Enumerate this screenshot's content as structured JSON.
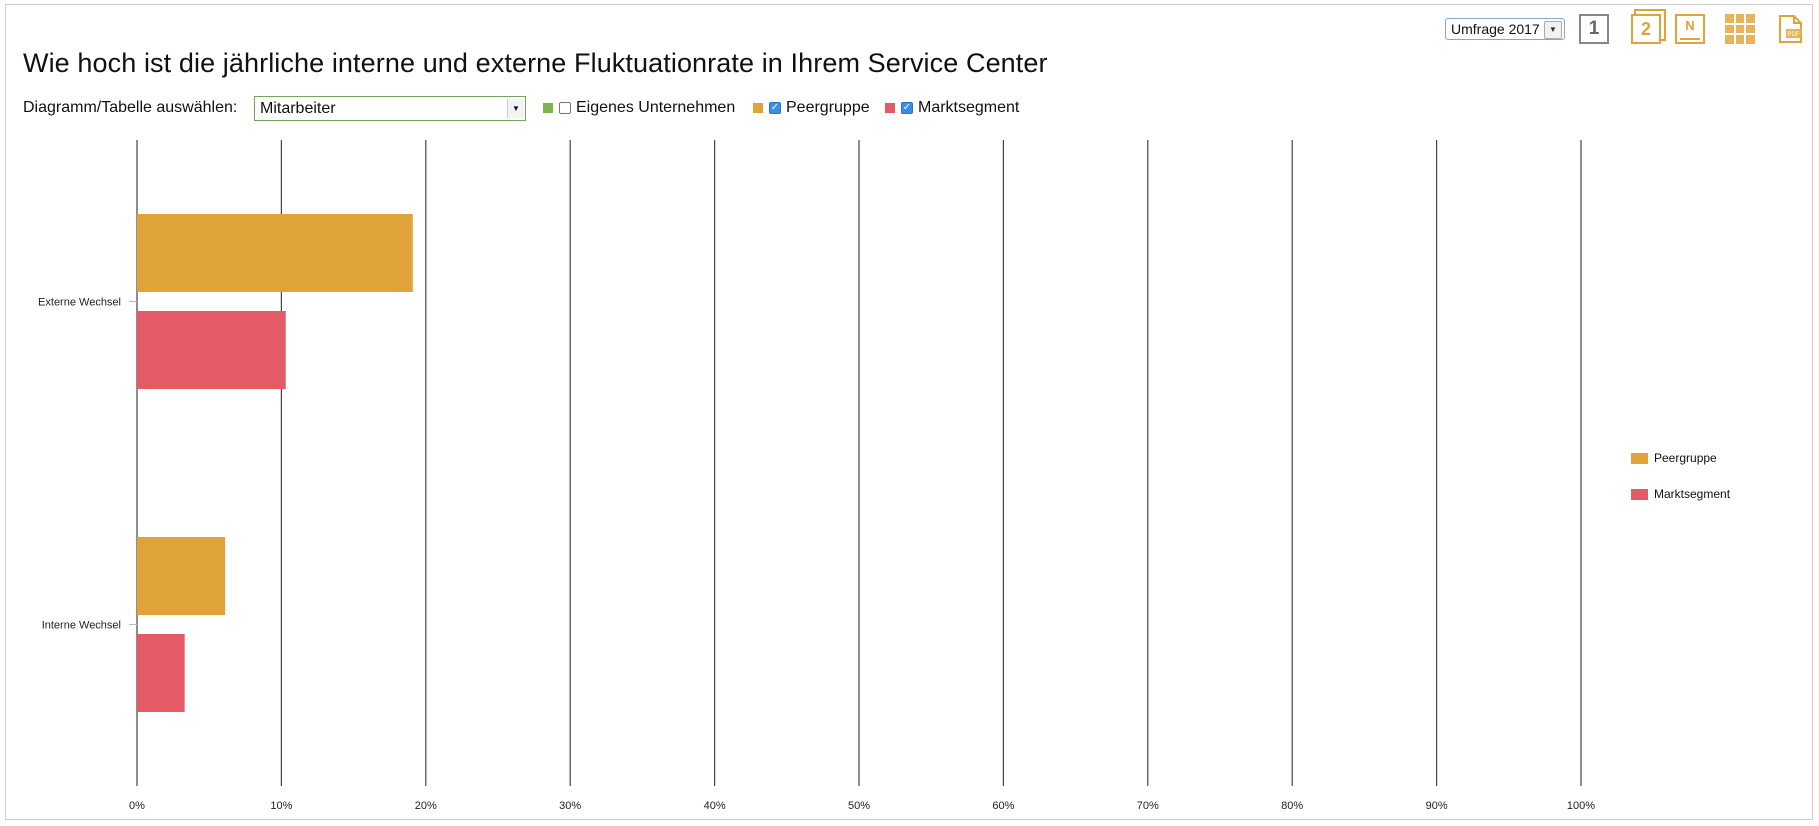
{
  "page": {
    "title": "Wie hoch ist die jährliche interne und externe Fluktuationrate in Ihrem Service Center"
  },
  "toolbar": {
    "survey_select": "Umfrage 2017",
    "icons": [
      "view-one-icon",
      "view-two-icon",
      "notes-icon",
      "grid-icon",
      "pdf-icon"
    ],
    "view_one_label": "1",
    "view_two_label": "2",
    "notes_label": "N",
    "pdf_label": "PDF"
  },
  "controls": {
    "select_label": "Diagramm/Tabelle auswählen:",
    "select_value": "Mitarbeiter",
    "filters": [
      {
        "label": "Eigenes Unternehmen",
        "checked": false,
        "color": "#7ab648"
      },
      {
        "label": "Peergruppe",
        "checked": true,
        "color": "#e0a33a"
      },
      {
        "label": "Marktsegment",
        "checked": true,
        "color": "#e45a65"
      }
    ]
  },
  "chart_data": {
    "type": "bar",
    "orientation": "horizontal",
    "categories": [
      "Externe Wechsel",
      "Interne Wechsel"
    ],
    "series": [
      {
        "name": "Peergruppe",
        "color": "#e0a33a",
        "values": [
          19.1,
          6.1
        ]
      },
      {
        "name": "Marktsegment",
        "color": "#e45a65",
        "values": [
          10.3,
          3.3
        ]
      }
    ],
    "xlim": [
      0,
      100
    ],
    "xticks": [
      "0%",
      "10%",
      "20%",
      "30%",
      "40%",
      "50%",
      "60%",
      "70%",
      "80%",
      "90%",
      "100%"
    ],
    "grid": true,
    "legend_position": "right"
  }
}
